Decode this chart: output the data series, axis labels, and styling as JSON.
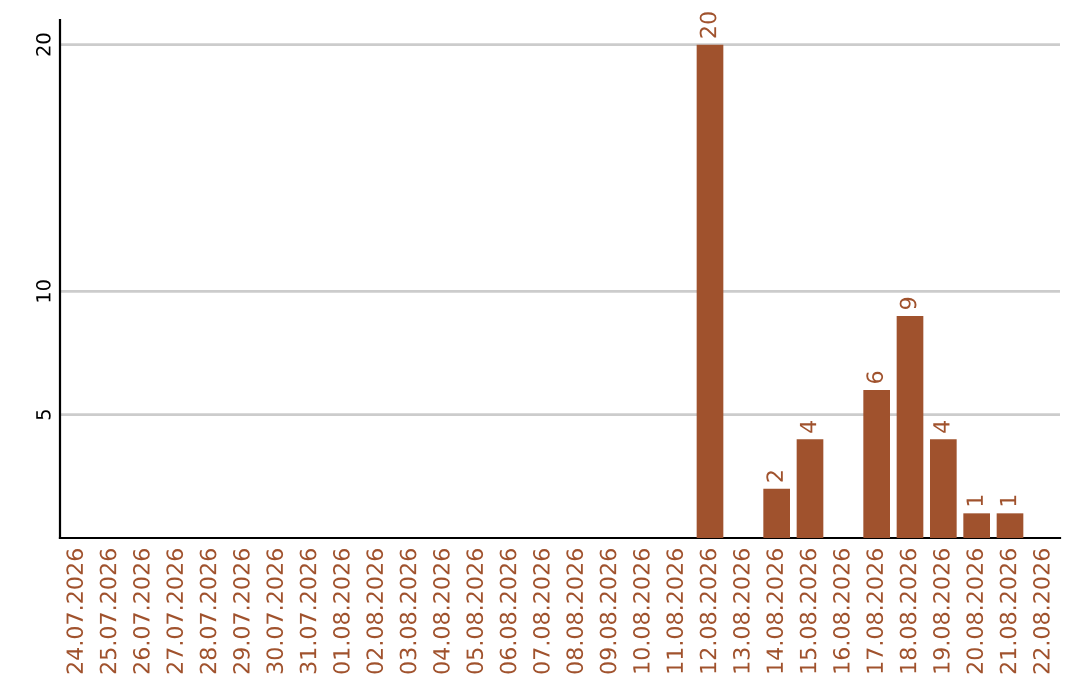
{
  "chart_data": {
    "type": "bar",
    "categories": [
      "24.07.2026",
      "25.07.2026",
      "26.07.2026",
      "27.07.2026",
      "28.07.2026",
      "29.07.2026",
      "30.07.2026",
      "31.07.2026",
      "01.08.2026",
      "02.08.2026",
      "03.08.2026",
      "04.08.2026",
      "05.08.2026",
      "06.08.2026",
      "07.08.2026",
      "08.08.2026",
      "09.08.2026",
      "10.08.2026",
      "11.08.2026",
      "12.08.2026",
      "13.08.2026",
      "14.08.2026",
      "15.08.2026",
      "16.08.2026",
      "17.08.2026",
      "18.08.2026",
      "19.08.2026",
      "20.08.2026",
      "21.08.2026",
      "22.08.2026"
    ],
    "values": [
      null,
      null,
      null,
      null,
      null,
      null,
      null,
      null,
      null,
      null,
      null,
      null,
      null,
      null,
      null,
      null,
      null,
      null,
      null,
      20,
      null,
      2,
      4,
      null,
      6,
      9,
      4,
      1,
      1,
      null
    ],
    "color": "#a0522d",
    "ylim": [
      0,
      21
    ],
    "yticks": [
      5,
      10,
      20
    ],
    "grid": "y",
    "data_labels": true
  }
}
